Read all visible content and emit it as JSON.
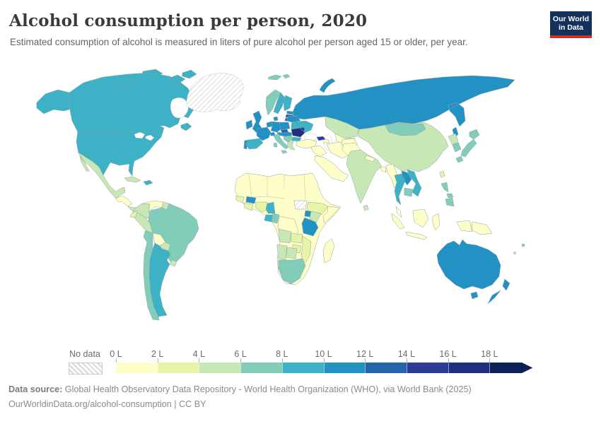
{
  "header": {
    "title": "Alcohol consumption per person, 2020",
    "subtitle": "Estimated consumption of alcohol is measured in liters of pure alcohol per person aged 15 or older, per year."
  },
  "logo": {
    "line1": "Our World",
    "line2": "in Data"
  },
  "legend": {
    "no_data_label": "No data",
    "tick_labels": [
      "0 L",
      "2 L",
      "4 L",
      "6 L",
      "8 L",
      "10 L",
      "12 L",
      "14 L",
      "16 L",
      "18 L"
    ]
  },
  "footer": {
    "source_label": "Data source:",
    "source_text": " Global Health Observatory Data Repository - World Health Organization (WHO), via World Bank (2025)",
    "citation_link": "OurWorldinData.org/alcohol-consumption",
    "license_suffix": " | CC BY"
  },
  "chart_data": {
    "type": "choropleth",
    "title": "Alcohol consumption per person, 2020",
    "unit": "liters of pure alcohol per person aged 15+ per year",
    "year": "2020",
    "legend_position": "bottom",
    "no_data": {
      "label": "No data",
      "style": "diagonal-hatch"
    },
    "legend_bins": [
      {
        "range": "0–2 L",
        "color": "#fefec8"
      },
      {
        "range": "2–4 L",
        "color": "#e5f4a6"
      },
      {
        "range": "4–6 L",
        "color": "#c7e8b4"
      },
      {
        "range": "6–8 L",
        "color": "#82ccba"
      },
      {
        "range": "8–10 L",
        "color": "#3db1c5"
      },
      {
        "range": "10–12 L",
        "color": "#2292c4"
      },
      {
        "range": "12–14 L",
        "color": "#2464ab"
      },
      {
        "range": "14–16 L",
        "color": "#2d3c99"
      },
      {
        "range": "16–18 L",
        "color": "#20307e"
      },
      {
        "range": "18+ L",
        "color": "#0e2156"
      }
    ],
    "country_bins": {
      "alaska": 4,
      "canada": 4,
      "usa": 4,
      "greenland": "nodata",
      "mexico": 2,
      "central-america-north": 0,
      "costa-rica-panama": 2,
      "cuba": 2,
      "hispaniola": 4,
      "colombia": 2,
      "venezuela": 0,
      "guyana": 2,
      "ecuador": 1,
      "peru": 2,
      "brazil": 3,
      "bolivia": 0,
      "paraguay": 2,
      "uruguay": 2,
      "argentina": 4,
      "chile": 3,
      "iceland": 3,
      "ireland": 5,
      "united-kingdom": 5,
      "portugal": 5,
      "spain": 4,
      "france": 5,
      "benelux": 5,
      "germany": 5,
      "denmark": 5,
      "norway": 3,
      "svalbard": 3,
      "sweden": 4,
      "finland": 4,
      "estonia": 5,
      "latvia": 6,
      "lithuania": 6,
      "poland": 5,
      "czechia": 6,
      "austria-hungary": 5,
      "switzerland": 5,
      "italy": 3,
      "balkans": 3,
      "romania": 8,
      "moldova": 7,
      "bulgaria": 4,
      "greece": 2,
      "ukraine": 4,
      "belarus": 5,
      "russia": 5,
      "kazakhstan": 2,
      "central-asia": 0,
      "georgia": 7,
      "azerbaijan": 0,
      "turkey": 0,
      "syria-iraq": 0,
      "iran": 0,
      "saudi-peninsula": 0,
      "north-central-africa": 0,
      "guinea": 1,
      "ivory-coast-ghana": 1,
      "burkina-faso": 5,
      "nigeria": 1,
      "cameroon": 4,
      "gabon": 4,
      "congo": 3,
      "dr-congo": 0,
      "south-sudan": "nodata",
      "ethiopia": 1,
      "somalia": 0,
      "uganda": 5,
      "kenya": 2,
      "tanzania": 5,
      "angola": 2,
      "zambia": 1,
      "mozambique": 1,
      "zimbabwe": 1,
      "namibia": 2,
      "botswana": 2,
      "south-africa": 3,
      "madagascar": 0,
      "pakistan": 0,
      "afghanistan": 0,
      "india": 2,
      "nepal": 0,
      "bangladesh": 0,
      "sri-lanka": 2,
      "china": 2,
      "mongolia": 3,
      "myanmar": 0,
      "thailand": 4,
      "laos": 5,
      "vietnam": 4,
      "cambodia": 3,
      "malaysia": 0,
      "indonesia": 0,
      "papua-new-guinea": 0,
      "philippines": 3,
      "taiwan": 1,
      "north-korea": 2,
      "south-korea": 3,
      "japan": 3,
      "australia": 5,
      "new-zealand": 5,
      "fiji": 3,
      "new-caledonia": 2
    }
  }
}
